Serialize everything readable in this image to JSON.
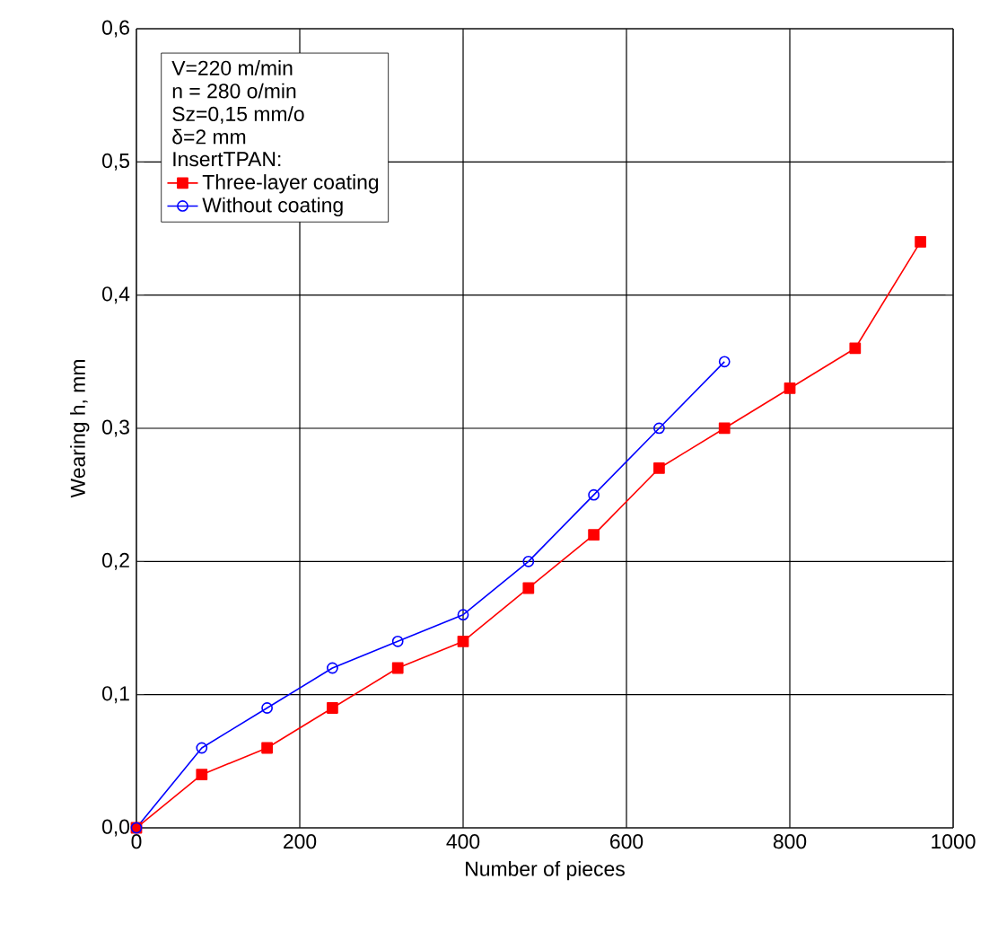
{
  "chart_data": {
    "type": "line",
    "xlabel": "Number of pieces",
    "ylabel": "Wearing  h, mm",
    "annotations": [
      "V=220 m/min",
      "n = 280 o/min",
      "Sz=0,15 mm/o",
      "δ=2 mm",
      "InsertTPAN:"
    ],
    "xlim": [
      0,
      1000
    ],
    "xticks": [
      0,
      200,
      400,
      600,
      800,
      1000
    ],
    "ylim": [
      0,
      0.6
    ],
    "yticks": [
      {
        "value": 0,
        "label": "0,0"
      },
      {
        "value": 0.1,
        "label": "0,1"
      },
      {
        "value": 0.2,
        "label": "0,2"
      },
      {
        "value": 0.3,
        "label": "0,3"
      },
      {
        "value": 0.4,
        "label": "0,4"
      },
      {
        "value": 0.5,
        "label": "0,5"
      },
      {
        "value": 0.6,
        "label": "0,6"
      }
    ],
    "grid": true,
    "legend": "top left",
    "series": [
      {
        "name": "Three-layer coating",
        "color": "#ff0000",
        "marker": "square",
        "x": [
          0,
          80,
          160,
          240,
          320,
          400,
          480,
          560,
          640,
          720,
          800,
          880,
          960
        ],
        "values": [
          0,
          0.04,
          0.06,
          0.09,
          0.12,
          0.14,
          0.18,
          0.22,
          0.27,
          0.3,
          0.33,
          0.36,
          0.44
        ]
      },
      {
        "name": "Without coating",
        "color": "#0000ff",
        "marker": "circle",
        "x": [
          0,
          80,
          160,
          240,
          320,
          400,
          480,
          560,
          640,
          720
        ],
        "values": [
          0,
          0.06,
          0.09,
          0.12,
          0.14,
          0.16,
          0.2,
          0.25,
          0.3,
          0.35
        ]
      }
    ]
  }
}
